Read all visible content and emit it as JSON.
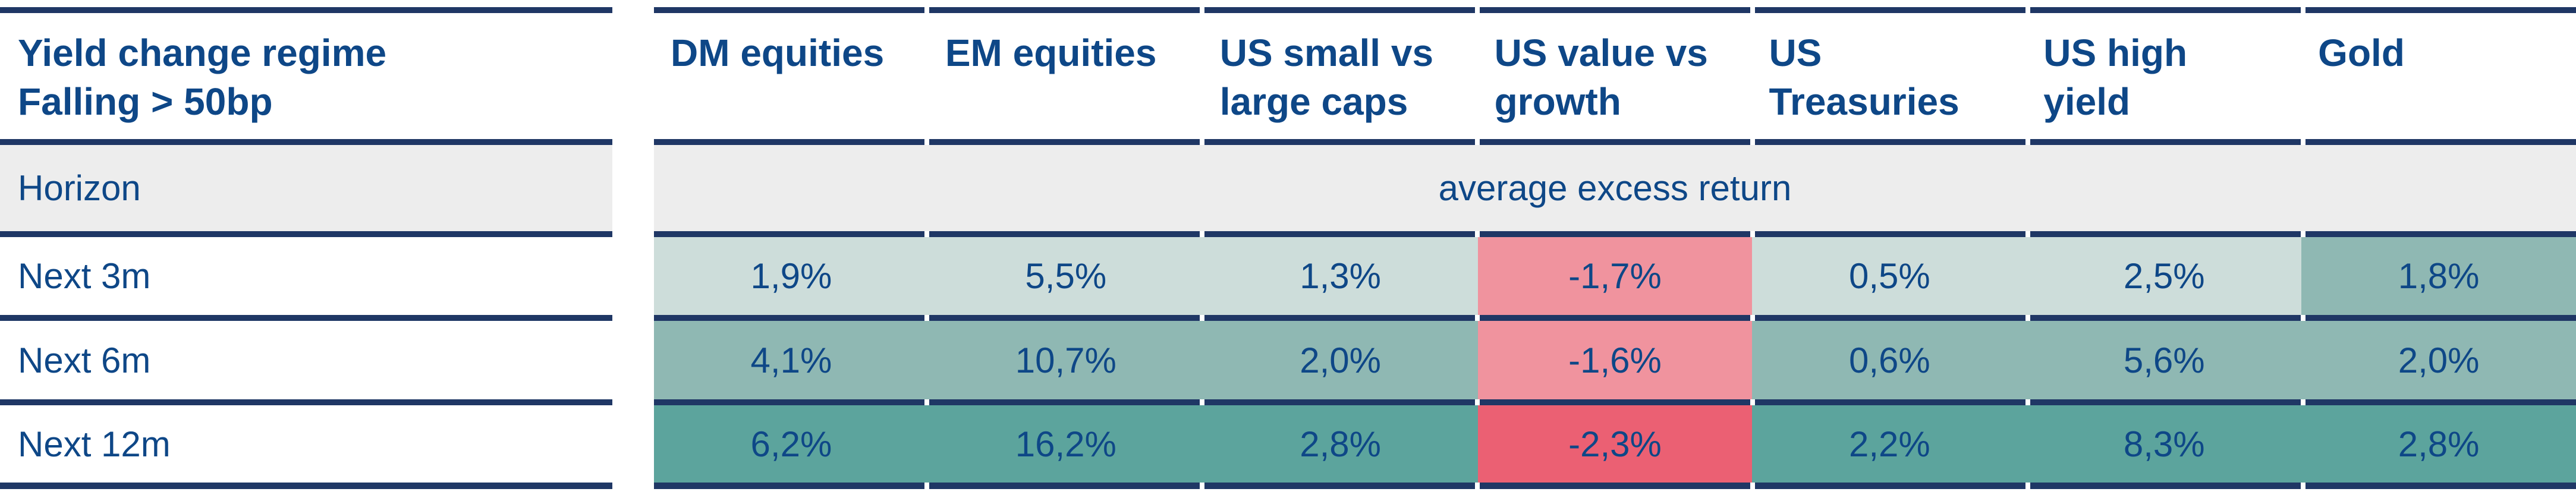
{
  "table_title": "Yield change regime Falling > 50bp",
  "header": {
    "col0": {
      "line1": "Yield change regime",
      "line2": "Falling > 50bp"
    },
    "cols": [
      {
        "line1": "DM equities",
        "line2": ""
      },
      {
        "line1": "EM equities",
        "line2": ""
      },
      {
        "line1": "US small vs",
        "line2": "large caps"
      },
      {
        "line1": "US value vs",
        "line2": "growth"
      },
      {
        "line1": "US",
        "line2": "Treasuries"
      },
      {
        "line1": "US high",
        "line2": "yield"
      },
      {
        "line1": "Gold",
        "line2": ""
      }
    ]
  },
  "horizon": {
    "label": "Horizon",
    "band": "average excess return"
  },
  "rows": [
    {
      "label": "Next 3m",
      "cells": [
        {
          "t": "1,9%",
          "bg": "#cdddda"
        },
        {
          "t": "5,5%",
          "bg": "#cdddda"
        },
        {
          "t": "1,3%",
          "bg": "#cdddda"
        },
        {
          "t": "-1,7%",
          "bg": "#f0939e"
        },
        {
          "t": "0,5%",
          "bg": "#cdddda"
        },
        {
          "t": "2,5%",
          "bg": "#cdddda"
        },
        {
          "t": "1,8%",
          "bg": "#8fb8b3"
        }
      ]
    },
    {
      "label": "Next 6m",
      "cells": [
        {
          "t": "4,1%",
          "bg": "#8fb8b3"
        },
        {
          "t": "10,7%",
          "bg": "#8fb8b3"
        },
        {
          "t": "2,0%",
          "bg": "#8fb8b3"
        },
        {
          "t": "-1,6%",
          "bg": "#f0939e"
        },
        {
          "t": "0,6%",
          "bg": "#8fb8b3"
        },
        {
          "t": "5,6%",
          "bg": "#8fb8b3"
        },
        {
          "t": "2,0%",
          "bg": "#8fb8b3"
        }
      ]
    },
    {
      "label": "Next 12m",
      "cells": [
        {
          "t": "6,2%",
          "bg": "#5ca49d"
        },
        {
          "t": "16,2%",
          "bg": "#5ca49d"
        },
        {
          "t": "2,8%",
          "bg": "#5ca49d"
        },
        {
          "t": "-2,3%",
          "bg": "#eb6073"
        },
        {
          "t": "2,2%",
          "bg": "#5ca49d"
        },
        {
          "t": "8,3%",
          "bg": "#5ca49d"
        },
        {
          "t": "2,8%",
          "bg": "#5ca49d"
        }
      ]
    }
  ],
  "palette": {
    "text_blue": "#0e4787",
    "border_navy": "#1f3765",
    "row_gray": "#ededed",
    "teal_light": "#cdddda",
    "teal_medium": "#8fb8b3",
    "teal_dark": "#5ca49d",
    "red_light": "#f0939e",
    "red_strong": "#eb6073"
  },
  "chart_data": {
    "type": "heatmap",
    "title": "Yield change regime Falling > 50bp",
    "value_label": "average excess return",
    "columns": [
      "DM equities",
      "EM equities",
      "US small vs large caps",
      "US value vs growth",
      "US Treasuries",
      "US high yield",
      "Gold"
    ],
    "row_label": "Horizon",
    "rows": [
      {
        "horizon": "Next 3m",
        "values_pct": [
          1.9,
          5.5,
          1.3,
          -1.7,
          0.5,
          2.5,
          1.8
        ]
      },
      {
        "horizon": "Next 6m",
        "values_pct": [
          4.1,
          10.7,
          2.0,
          -1.6,
          0.6,
          5.6,
          2.0
        ]
      },
      {
        "horizon": "Next 12m",
        "values_pct": [
          6.2,
          16.2,
          2.8,
          -2.3,
          2.2,
          8.3,
          2.8
        ]
      }
    ],
    "color_coding": "teal shades = positive average excess return (darker = longer horizon / stronger), red/pink = negative"
  }
}
